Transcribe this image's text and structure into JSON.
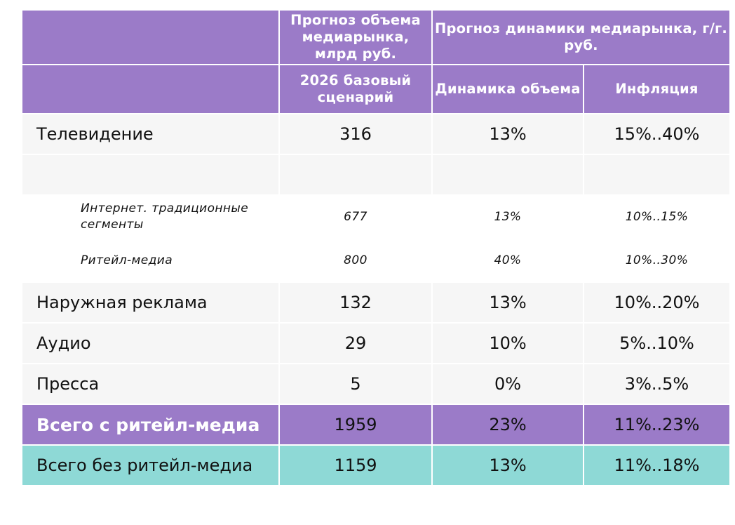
{
  "header": {
    "volume_group": "Прогноз объема медиарынка, млрд руб.",
    "dynamics_group": "Прогноз динамики медиарынка, г/г. руб.",
    "scenario": "2026 базовый сценарий",
    "volume_dynamics": "Динамика объема",
    "inflation": "Инфляция"
  },
  "rows": {
    "tv": {
      "label": "Телевидение",
      "volume": "316",
      "dynamics": "13%",
      "inflation": "15%..40%"
    },
    "internet_traditional": {
      "label": "Интернет. традиционные сегменты",
      "volume": "677",
      "dynamics": "13%",
      "inflation": "10%..15%"
    },
    "retail_media": {
      "label": "Ритейл-медиа",
      "volume": "800",
      "dynamics": "40%",
      "inflation": "10%..30%"
    },
    "outdoor": {
      "label": "Наружная реклама",
      "volume": "132",
      "dynamics": "13%",
      "inflation": "10%..20%"
    },
    "audio": {
      "label": "Аудио",
      "volume": "29",
      "dynamics": "10%",
      "inflation": "5%..10%"
    },
    "press": {
      "label": "Пресса",
      "volume": "5",
      "dynamics": "0%",
      "inflation": "3%..5%"
    },
    "total_with_retail": {
      "label": "Всего с ритейл-медиа",
      "volume": "1959",
      "dynamics": "23%",
      "inflation": "11%..23%"
    },
    "total_without_retail": {
      "label": "Всего без ритейл-медиа",
      "volume": "1159",
      "dynamics": "13%",
      "inflation": "11%..18%"
    }
  },
  "colors": {
    "header_purple": "#9b7bc8",
    "total_teal": "#8ed9d6",
    "row_gray": "#f6f6f6"
  }
}
